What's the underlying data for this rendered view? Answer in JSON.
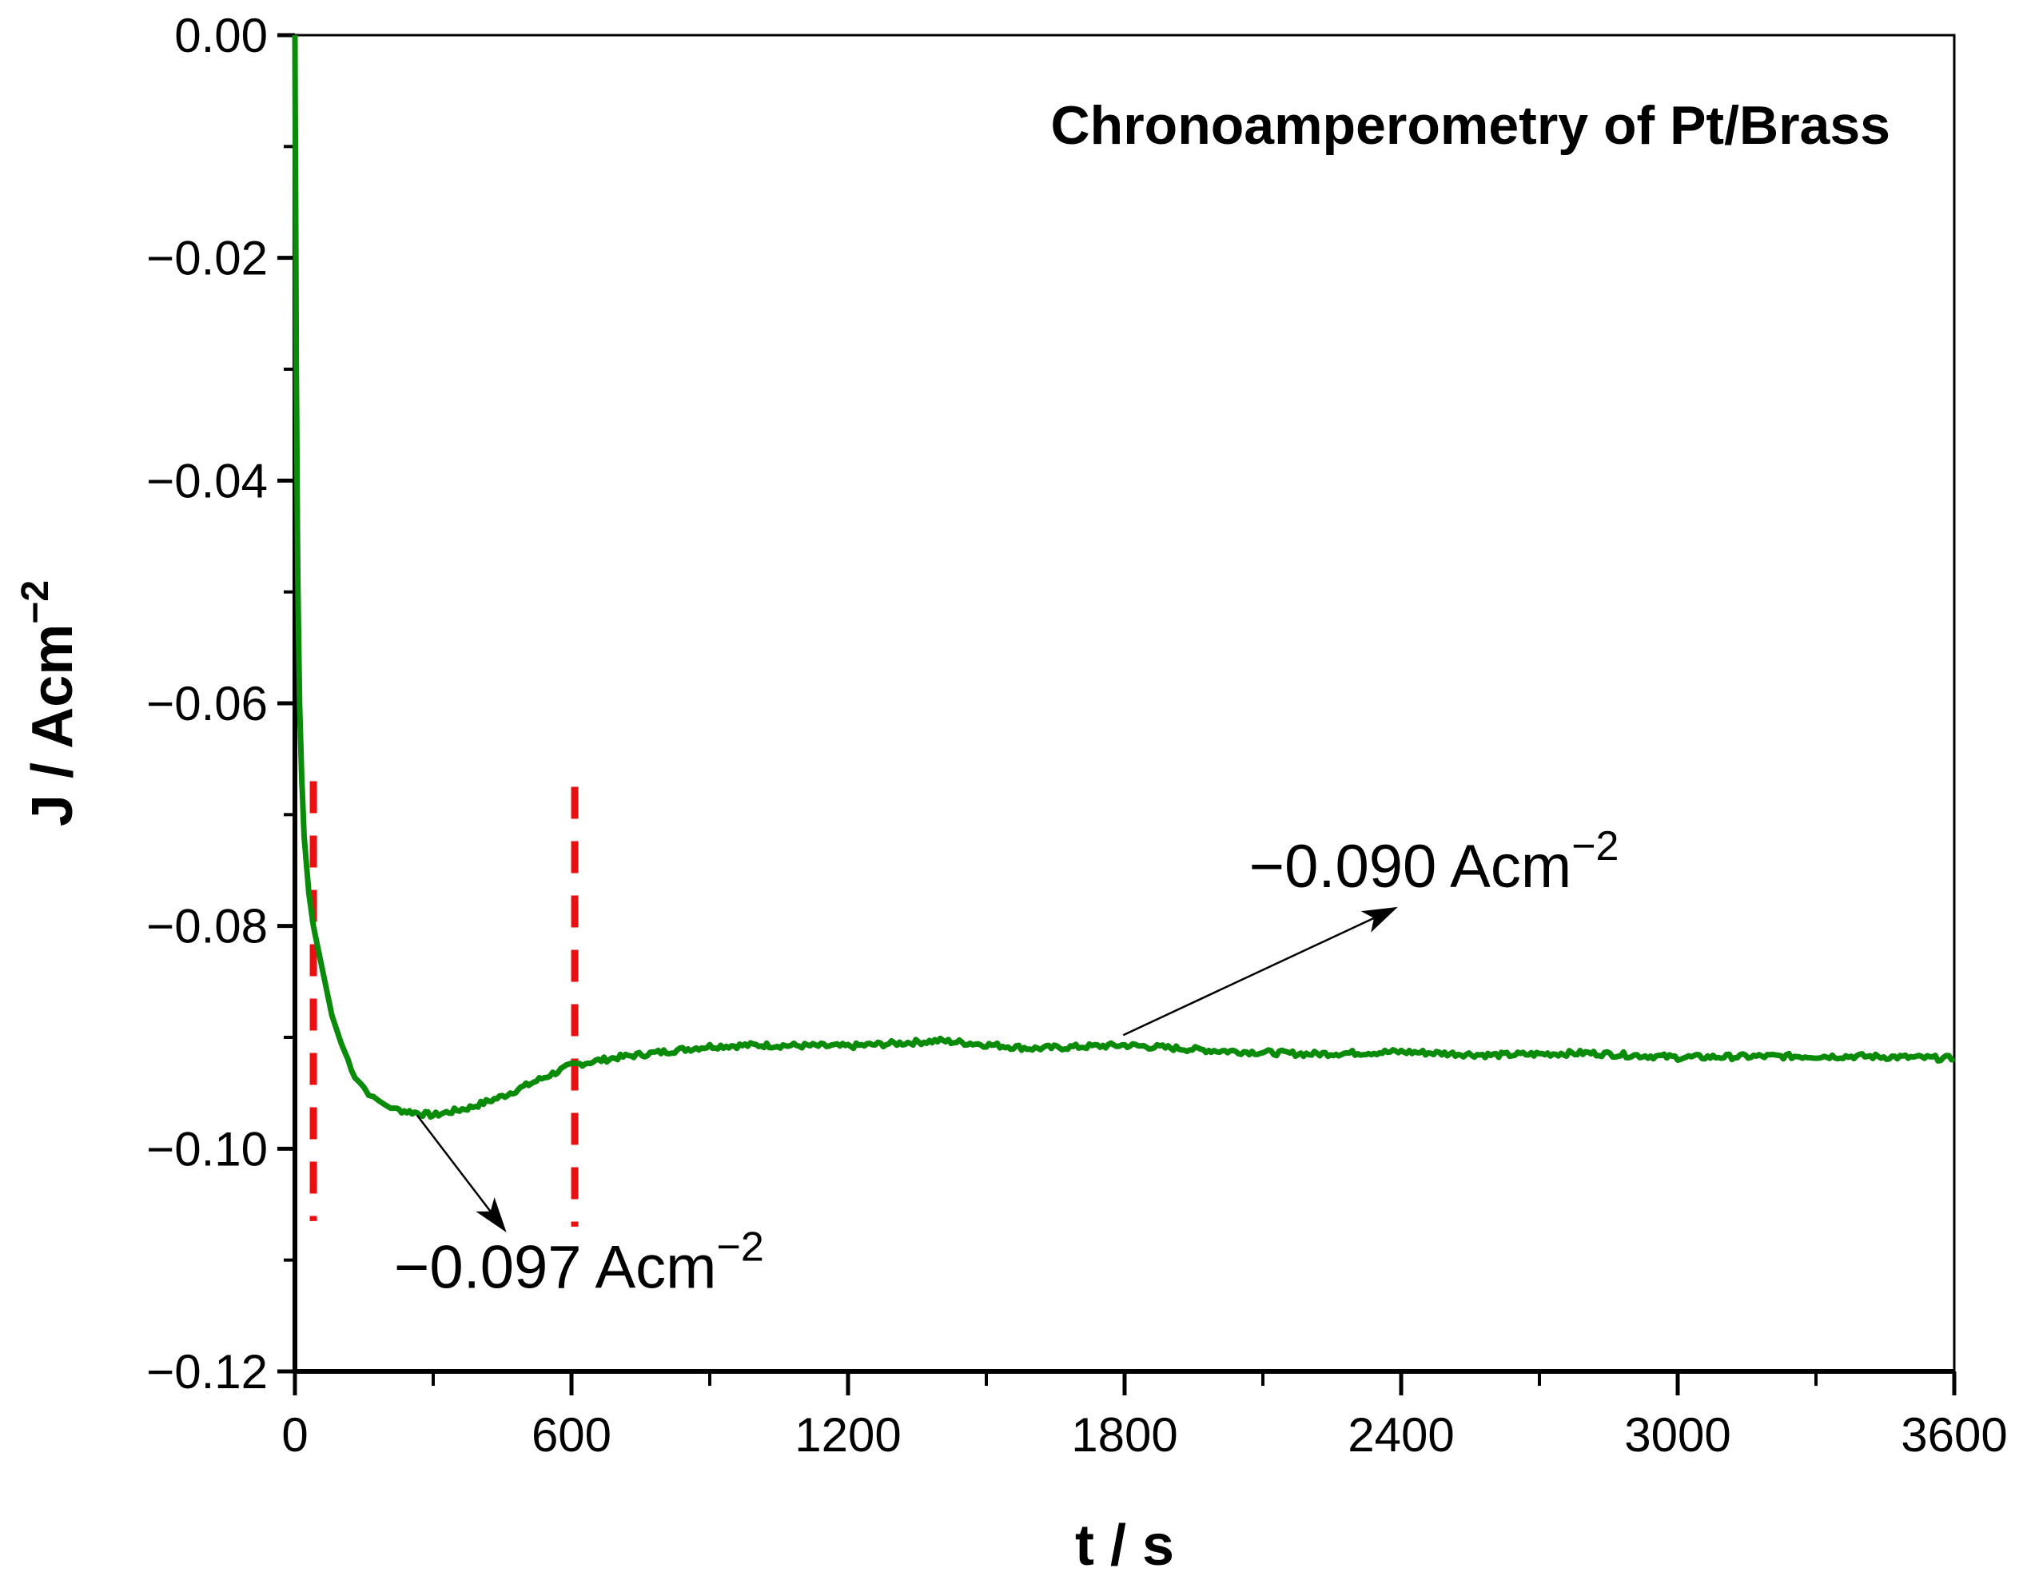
{
  "chart_data": {
    "type": "line",
    "title": "Chronoamperometry of Pt/Brass",
    "xlabel": "t / s",
    "ylabel": "J / Acm−2",
    "xlim": [
      0,
      3600
    ],
    "ylim": [
      -0.12,
      0.0
    ],
    "x_ticks": [
      0,
      600,
      1200,
      1800,
      2400,
      3000,
      3600
    ],
    "x_tick_labels": [
      "0",
      "600",
      "1200",
      "1800",
      "2400",
      "3000",
      "3600"
    ],
    "y_ticks": [
      0.0,
      -0.02,
      -0.04,
      -0.06,
      -0.08,
      -0.1,
      -0.12
    ],
    "y_tick_labels": [
      "0.00",
      "−0.02",
      "−0.04",
      "−0.06",
      "−0.08",
      "−0.10",
      "−0.12"
    ],
    "grid": false,
    "series": [
      {
        "color": "#0a8c0a",
        "x": [
          0,
          3,
          6,
          10,
          15,
          20,
          30,
          40,
          50,
          60,
          80,
          100,
          130,
          170,
          220,
          300,
          380,
          450,
          530,
          600,
          700,
          800,
          900,
          1000,
          1200,
          1400,
          1600,
          1800,
          2000,
          2200,
          2400,
          2600,
          2800,
          3000,
          3200,
          3400,
          3600
        ],
        "y": [
          0.0,
          -0.03,
          -0.048,
          -0.06,
          -0.067,
          -0.072,
          -0.077,
          -0.08,
          -0.082,
          -0.084,
          -0.088,
          -0.0905,
          -0.0935,
          -0.0955,
          -0.0965,
          -0.097,
          -0.0963,
          -0.0953,
          -0.0938,
          -0.0925,
          -0.0918,
          -0.0913,
          -0.0908,
          -0.0907,
          -0.0908,
          -0.0903,
          -0.091,
          -0.0907,
          -0.0912,
          -0.0915,
          -0.0913,
          -0.0916,
          -0.0914,
          -0.0918,
          -0.0917,
          -0.0917,
          -0.0919
        ]
      }
    ],
    "reference_lines": [
      {
        "type": "vertical-dashed",
        "color": "#e81010",
        "x": 40,
        "y_range": [
          -0.067,
          -0.1065
        ]
      },
      {
        "type": "vertical-dashed",
        "color": "#e81010",
        "x": 607,
        "y_range": [
          -0.0675,
          -0.107
        ]
      }
    ],
    "annotations": [
      {
        "text": "−0.097 Acm",
        "sup": "−2",
        "x": 215,
        "y": -0.1125,
        "arrow_from": [
          265,
          -0.097
        ],
        "arrow_to": [
          455,
          -0.1073
        ]
      },
      {
        "text": "−0.090 Acm",
        "sup": "−2",
        "x": 2070,
        "y": -0.0765,
        "arrow_from": [
          1797,
          -0.0898
        ],
        "arrow_to": [
          2387,
          -0.0784
        ]
      }
    ]
  }
}
